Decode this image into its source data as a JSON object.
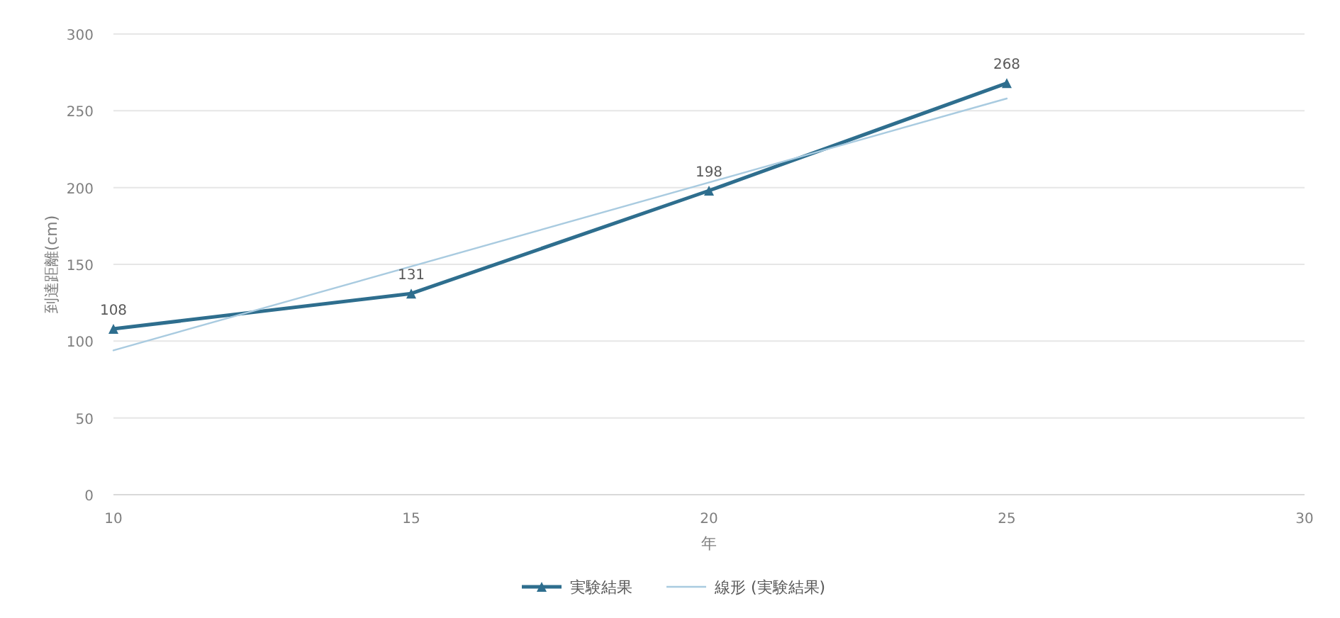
{
  "chart_data": {
    "type": "line",
    "xlabel": "年",
    "ylabel": "到達距離(cm)",
    "xlim": [
      10,
      30
    ],
    "xticks": [
      10,
      15,
      20,
      25,
      30
    ],
    "ylim": [
      0,
      300
    ],
    "yticks": [
      0,
      50,
      100,
      150,
      200,
      250,
      300
    ],
    "grid": "y",
    "legend": "bottom",
    "series": [
      {
        "name": "実験結果",
        "color": "#2e6e8e",
        "x": [
          10,
          15,
          20,
          25
        ],
        "values": [
          108,
          131,
          198,
          268
        ],
        "marker": "triangle",
        "line_style": "solid",
        "value_labels": [
          "108",
          "131",
          "198",
          "268"
        ]
      },
      {
        "name": "線形 (実験結果)",
        "color": "#a9cbe0",
        "x": [
          10,
          25
        ],
        "values": [
          94,
          258
        ],
        "marker": "none",
        "line_style": "solid"
      }
    ]
  }
}
